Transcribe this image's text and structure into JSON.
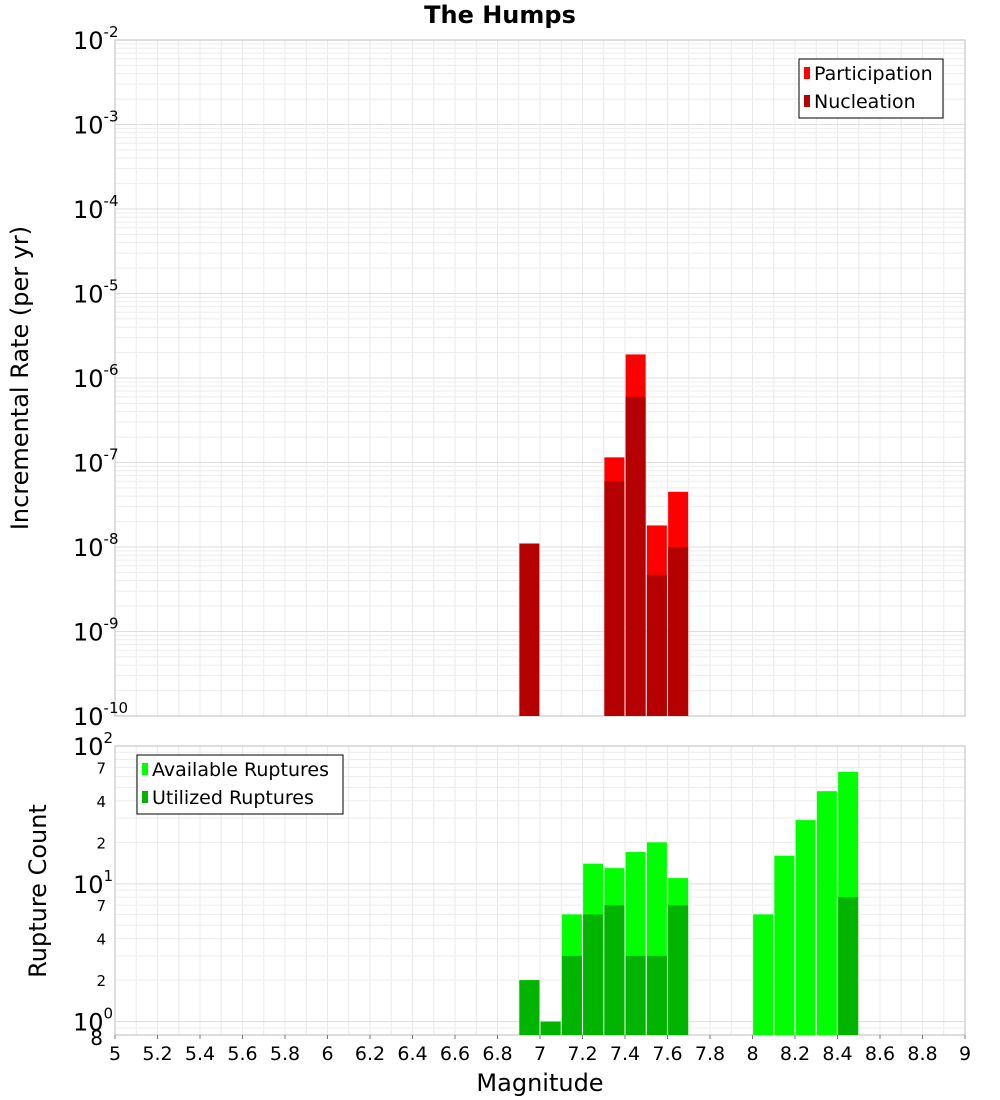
{
  "chart_data": [
    {
      "type": "bar",
      "title": "The Humps",
      "xlabel": "",
      "ylabel": "Incremental Rate (per yr)",
      "yscale": "log",
      "ylim": [
        1e-10,
        0.01
      ],
      "xlim": [
        5,
        9
      ],
      "grid": true,
      "legend_position": "top-right",
      "y_tick_labels": [
        {
          "base": "10",
          "exp": "-10",
          "value": 1e-10
        },
        {
          "base": "10",
          "exp": "-9",
          "value": 1e-09
        },
        {
          "base": "10",
          "exp": "-8",
          "value": 1e-08
        },
        {
          "base": "10",
          "exp": "-7",
          "value": 1e-07
        },
        {
          "base": "10",
          "exp": "-6",
          "value": 1e-06
        },
        {
          "base": "10",
          "exp": "-5",
          "value": 1e-05
        },
        {
          "base": "10",
          "exp": "-4",
          "value": 0.0001
        },
        {
          "base": "10",
          "exp": "-3",
          "value": 0.001
        },
        {
          "base": "10",
          "exp": "-2",
          "value": 0.01
        }
      ],
      "series": [
        {
          "name": "Participation",
          "color": "#ff0000",
          "points": [
            [
              7.35,
              1.15e-07
            ],
            [
              7.45,
              1.9e-06
            ],
            [
              7.55,
              1.8e-08
            ],
            [
              7.65,
              4.5e-08
            ]
          ]
        },
        {
          "name": "Nucleation",
          "color": "#b40000",
          "points": [
            [
              6.95,
              1.1e-08
            ],
            [
              7.35,
              6e-08
            ],
            [
              7.45,
              6e-07
            ],
            [
              7.55,
              4.7e-09
            ],
            [
              7.65,
              1e-08
            ]
          ]
        }
      ]
    },
    {
      "type": "bar",
      "title": "",
      "xlabel": "Magnitude",
      "ylabel": "Rupture Count",
      "yscale": "log",
      "ylim": [
        0.8,
        100
      ],
      "xlim": [
        5,
        9
      ],
      "grid": true,
      "legend_position": "top-left",
      "x_ticks": [
        5,
        5.2,
        5.4,
        5.6,
        5.8,
        6,
        6.2,
        6.4,
        6.6,
        6.8,
        7,
        7.2,
        7.4,
        7.6,
        7.8,
        8,
        8.2,
        8.4,
        8.6,
        8.8,
        9
      ],
      "y_major_ticks": [
        {
          "base": "10",
          "exp": "0",
          "value": 1
        },
        {
          "base": "10",
          "exp": "1",
          "value": 10
        },
        {
          "base": "10",
          "exp": "2",
          "value": 100
        }
      ],
      "y_minor_ticks": [
        {
          "label": "8",
          "value": 0.8
        },
        {
          "label": "2",
          "value": 2
        },
        {
          "label": "4",
          "value": 4
        },
        {
          "label": "7",
          "value": 7
        },
        {
          "label": "2",
          "value": 20
        },
        {
          "label": "4",
          "value": 40
        },
        {
          "label": "7",
          "value": 70
        }
      ],
      "series": [
        {
          "name": "Available Ruptures",
          "color": "#00ff00",
          "points": [
            [
              6.95,
              2
            ],
            [
              7.05,
              1
            ],
            [
              7.15,
              6
            ],
            [
              7.25,
              14
            ],
            [
              7.35,
              13
            ],
            [
              7.45,
              17
            ],
            [
              7.55,
              20
            ],
            [
              7.65,
              11
            ],
            [
              8.05,
              6
            ],
            [
              8.15,
              16
            ],
            [
              8.25,
              29
            ],
            [
              8.35,
              47
            ],
            [
              8.45,
              65
            ]
          ]
        },
        {
          "name": "Utilized Ruptures",
          "color": "#00b400",
          "points": [
            [
              6.95,
              2
            ],
            [
              7.05,
              1
            ],
            [
              7.15,
              3
            ],
            [
              7.25,
              6
            ],
            [
              7.35,
              7
            ],
            [
              7.45,
              3
            ],
            [
              7.55,
              3
            ],
            [
              7.65,
              7
            ],
            [
              8.45,
              8
            ]
          ]
        }
      ]
    }
  ]
}
